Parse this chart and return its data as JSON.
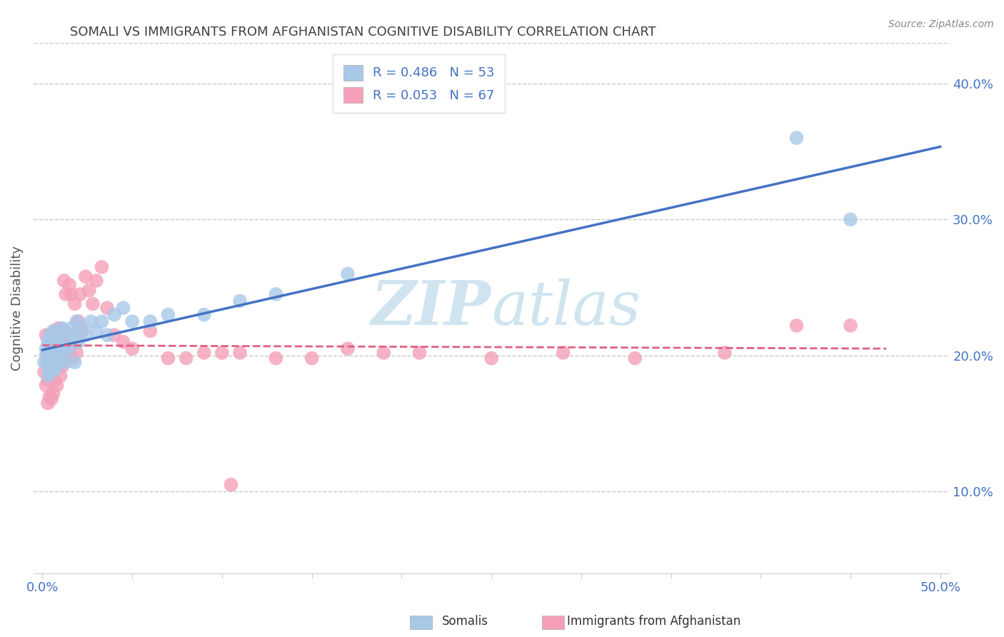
{
  "title": "SOMALI VS IMMIGRANTS FROM AFGHANISTAN COGNITIVE DISABILITY CORRELATION CHART",
  "source": "Source: ZipAtlas.com",
  "ylabel": "Cognitive Disability",
  "xlim": [
    -0.005,
    0.505
  ],
  "ylim": [
    0.04,
    0.43
  ],
  "xticks": [
    0.0,
    0.05,
    0.1,
    0.15,
    0.2,
    0.25,
    0.3,
    0.35,
    0.4,
    0.45,
    0.5
  ],
  "xtick_labels": [
    "0.0%",
    "",
    "",
    "",
    "",
    "",
    "",
    "",
    "",
    "",
    "50.0%"
  ],
  "yticks_right": [
    0.1,
    0.2,
    0.3,
    0.4
  ],
  "ytick_right_labels": [
    "10.0%",
    "20.0%",
    "30.0%",
    "40.0%"
  ],
  "legend_R1": "R = 0.486",
  "legend_N1": "N = 53",
  "legend_R2": "R = 0.053",
  "legend_N2": "N = 67",
  "somali_color": "#a8c8e8",
  "afghan_color": "#f4a0b8",
  "somali_line_color": "#4472c4",
  "afghan_line_color": "#e06080",
  "watermark_color": "#d0e4f0",
  "background_color": "#ffffff",
  "title_color": "#404040",
  "axis_label_color": "#555555",
  "tick_color": "#4472c4",
  "grid_color": "#c8c8c8",
  "somali_x": [
    0.001,
    0.002,
    0.002,
    0.003,
    0.003,
    0.003,
    0.004,
    0.004,
    0.004,
    0.005,
    0.005,
    0.005,
    0.006,
    0.006,
    0.006,
    0.006,
    0.007,
    0.007,
    0.007,
    0.008,
    0.008,
    0.009,
    0.009,
    0.01,
    0.01,
    0.011,
    0.011,
    0.012,
    0.013,
    0.014,
    0.015,
    0.016,
    0.017,
    0.018,
    0.019,
    0.02,
    0.022,
    0.024,
    0.027,
    0.03,
    0.033,
    0.036,
    0.04,
    0.045,
    0.05,
    0.06,
    0.07,
    0.09,
    0.11,
    0.13,
    0.17,
    0.42,
    0.45
  ],
  "somali_y": [
    0.195,
    0.2,
    0.205,
    0.185,
    0.195,
    0.21,
    0.19,
    0.2,
    0.215,
    0.188,
    0.195,
    0.208,
    0.192,
    0.2,
    0.208,
    0.218,
    0.19,
    0.2,
    0.212,
    0.195,
    0.21,
    0.195,
    0.215,
    0.2,
    0.218,
    0.205,
    0.22,
    0.205,
    0.195,
    0.215,
    0.205,
    0.22,
    0.215,
    0.195,
    0.225,
    0.21,
    0.22,
    0.215,
    0.225,
    0.218,
    0.225,
    0.215,
    0.23,
    0.235,
    0.225,
    0.225,
    0.23,
    0.23,
    0.24,
    0.245,
    0.26,
    0.36,
    0.3
  ],
  "afghan_x": [
    0.001,
    0.002,
    0.002,
    0.003,
    0.003,
    0.003,
    0.004,
    0.004,
    0.005,
    0.005,
    0.005,
    0.006,
    0.006,
    0.006,
    0.007,
    0.007,
    0.007,
    0.008,
    0.008,
    0.008,
    0.009,
    0.009,
    0.01,
    0.01,
    0.01,
    0.011,
    0.011,
    0.012,
    0.012,
    0.013,
    0.013,
    0.014,
    0.015,
    0.016,
    0.017,
    0.018,
    0.019,
    0.02,
    0.021,
    0.022,
    0.024,
    0.026,
    0.028,
    0.03,
    0.033,
    0.036,
    0.04,
    0.045,
    0.05,
    0.06,
    0.07,
    0.08,
    0.09,
    0.1,
    0.11,
    0.13,
    0.15,
    0.17,
    0.19,
    0.21,
    0.25,
    0.29,
    0.33,
    0.38,
    0.42,
    0.45,
    0.105
  ],
  "afghan_y": [
    0.188,
    0.178,
    0.215,
    0.165,
    0.182,
    0.2,
    0.17,
    0.198,
    0.168,
    0.185,
    0.202,
    0.172,
    0.195,
    0.215,
    0.182,
    0.198,
    0.218,
    0.178,
    0.192,
    0.21,
    0.198,
    0.22,
    0.185,
    0.198,
    0.215,
    0.192,
    0.208,
    0.218,
    0.255,
    0.198,
    0.245,
    0.208,
    0.252,
    0.245,
    0.198,
    0.238,
    0.202,
    0.225,
    0.245,
    0.218,
    0.258,
    0.248,
    0.238,
    0.255,
    0.265,
    0.235,
    0.215,
    0.21,
    0.205,
    0.218,
    0.198,
    0.198,
    0.202,
    0.202,
    0.202,
    0.198,
    0.198,
    0.205,
    0.202,
    0.202,
    0.198,
    0.202,
    0.198,
    0.202,
    0.222,
    0.222,
    0.105
  ]
}
